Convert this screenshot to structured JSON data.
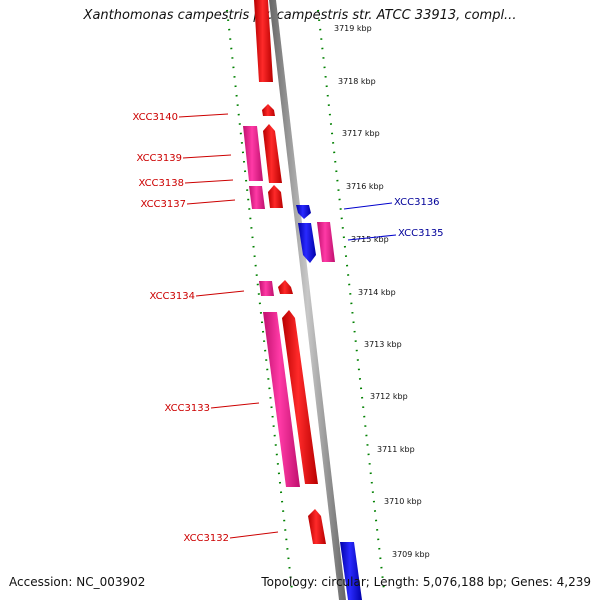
{
  "title": "Xanthomonas campestris pv. campestris str. ATCC 33913, compl...",
  "footer": {
    "accession": "Accession: NC_003902",
    "topology": "Topology: circular; Length: 5,076,188 bp; Genes: 4,239"
  },
  "colors": {
    "forward_gene": "#ff0000",
    "forward_cds": "#ff1493",
    "reverse_gene": "#0000ff",
    "reverse_cds": "#ff1493",
    "tick": "#008000",
    "backbone": "#888888",
    "forward_label": "#cc0000",
    "reverse_label": "#000099"
  },
  "kbp_labels": [
    "3719 kbp",
    "3718 kbp",
    "3717 kbp",
    "3716 kbp",
    "3715 kbp",
    "3714 kbp",
    "3713 kbp",
    "3712 kbp",
    "3711 kbp",
    "3710 kbp",
    "3709 kbp"
  ],
  "genes_forward": [
    "XCC3140",
    "XCC3139",
    "XCC3138",
    "XCC3137",
    "XCC3134",
    "XCC3133",
    "XCC3132"
  ],
  "genes_reverse": [
    "XCC3136",
    "XCC3135"
  ]
}
